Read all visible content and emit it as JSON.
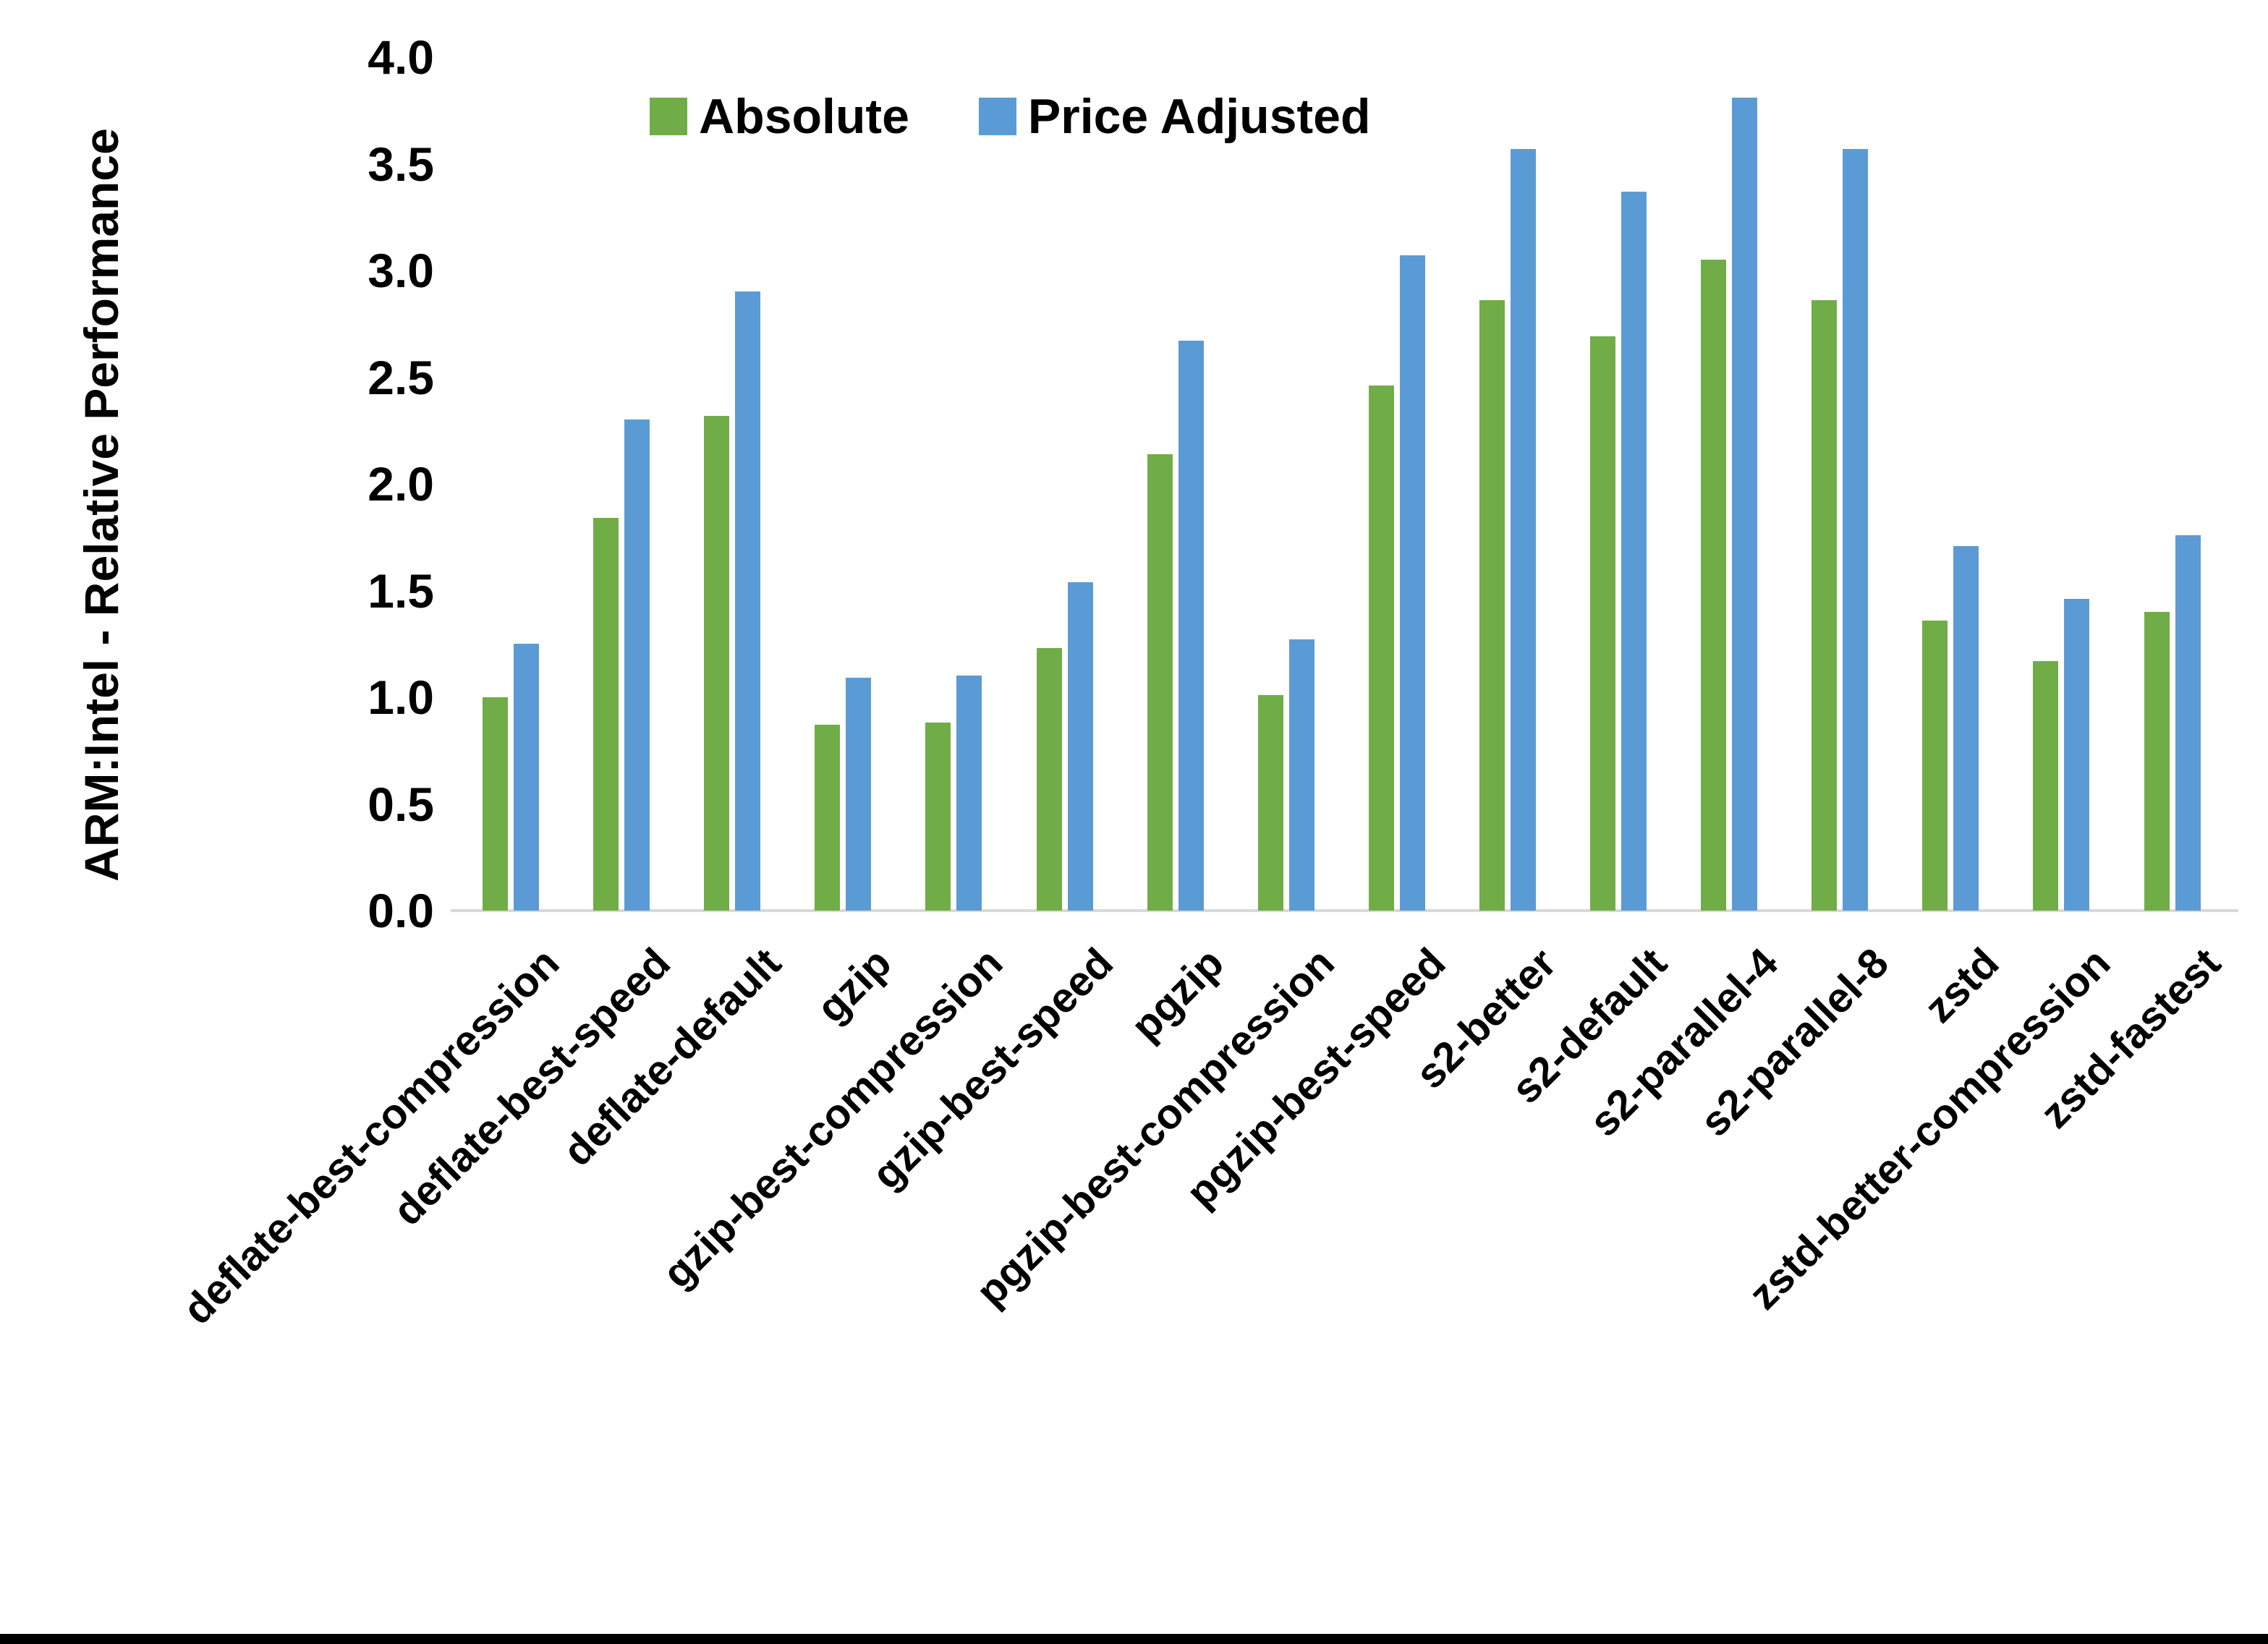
{
  "chart_data": {
    "type": "bar",
    "title": "",
    "y_axis_title": "ARM:Intel - Relative Performance",
    "x_axis_title": "",
    "categories": [
      "deflate-best-compression",
      "deflate-best-speed",
      "deflate-default",
      "gzip",
      "gzip-best-compression",
      "gzip-best-speed",
      "pgzip",
      "pgzip-best-compression",
      "pgzip-best-speed",
      "s2-better",
      "s2-default",
      "s2-parallel-4",
      "s2-parallel-8",
      "zstd",
      "zstd-better-compression",
      "zstd-fastest"
    ],
    "series": [
      {
        "name": "Absolute",
        "color": "#70AD47",
        "values": [
          1.0,
          1.84,
          2.32,
          0.87,
          0.88,
          1.23,
          2.14,
          1.01,
          2.46,
          2.86,
          2.69,
          3.05,
          2.86,
          1.36,
          1.17,
          1.4
        ]
      },
      {
        "name": "Price Adjusted",
        "color": "#5B9BD5",
        "values": [
          1.25,
          2.3,
          2.9,
          1.09,
          1.1,
          1.54,
          2.67,
          1.27,
          3.07,
          3.57,
          3.37,
          3.81,
          3.57,
          1.71,
          1.46,
          1.76
        ]
      }
    ],
    "ylim": [
      0.0,
      4.0
    ],
    "y_tick_step": 0.5,
    "y_ticks": [
      "0.0",
      "0.5",
      "1.0",
      "1.5",
      "2.0",
      "2.5",
      "3.0",
      "3.5",
      "4.0"
    ],
    "grid": "off",
    "legend_position": "top",
    "axis_line_color": "#D9D9D9",
    "background": "#FFFFFF",
    "bottom_border_color": "#000000",
    "text_color": "#000000"
  }
}
